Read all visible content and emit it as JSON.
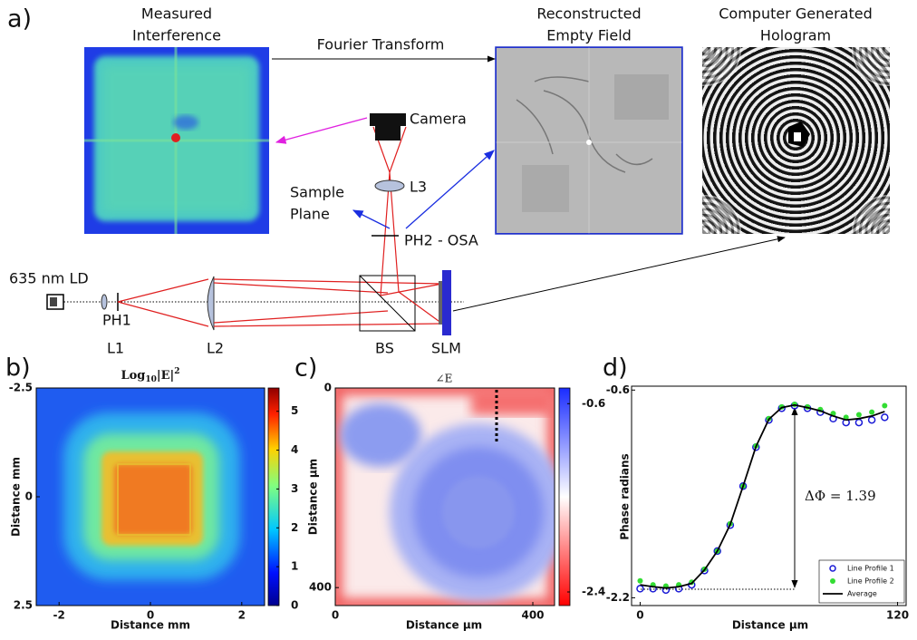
{
  "panel_a": {
    "label": "a)",
    "measured": {
      "title": [
        "Measured",
        "Interference"
      ]
    },
    "reconstructed": {
      "title": [
        "Reconstructed",
        "Empty Field"
      ]
    },
    "hologram": {
      "title": [
        "Computer Generated",
        "Hologram"
      ]
    },
    "transform_label": "Fourier Transform",
    "setup": {
      "source": "635 nm LD",
      "pinhole": "PH1",
      "lens1": "L1",
      "lens2": "L2",
      "beam_splitter": "BS",
      "modulator": "SLM",
      "camera": "Camera",
      "lens3": "L3",
      "sample_plane": [
        "Sample",
        "Plane"
      ],
      "osa": "PH2 - OSA"
    }
  },
  "panel_b": {
    "label": "b)",
    "title": {
      "base": "Log",
      "sub": "10",
      "main": "|E|",
      "sup": "2"
    },
    "xlabel": "Distance mm",
    "ylabel": "Distance mm",
    "xlim": [
      -2.5,
      2.5
    ],
    "xticks": [
      -2,
      0,
      2
    ],
    "ylim": [
      -2.5,
      2.5
    ],
    "yticks": [
      -2.5,
      0,
      2.5
    ],
    "colorbar": {
      "lim": [
        0,
        5.6
      ],
      "ticks": [
        0,
        1,
        2,
        3,
        4,
        5
      ]
    }
  },
  "panel_c": {
    "label": "c)",
    "title": "∠E",
    "xlabel": "Distance μm",
    "ylabel": "Distance μm",
    "xlim": [
      0,
      444
    ],
    "xticks": [
      0,
      400
    ],
    "ylim": [
      0,
      436
    ],
    "yticks": [
      0,
      400
    ],
    "colorbar": {
      "lim": [
        -2.53,
        -0.45
      ],
      "ticks": [
        -0.6,
        -2.4
      ]
    }
  },
  "chart_data": {
    "type": "scatter",
    "label": "d)",
    "xlabel": "Distance μm",
    "ylabel": "Phase radians",
    "xlim": [
      -4,
      124
    ],
    "xticks": [
      0,
      120
    ],
    "ylim": [
      -2.26,
      -0.57
    ],
    "yticks": [
      -2.2,
      -0.6
    ],
    "annotation": "ΔΦ = 1.39",
    "legend": "lower right",
    "x": [
      0,
      6,
      12,
      18,
      24,
      30,
      36,
      42,
      48,
      54,
      60,
      66,
      72,
      78,
      84,
      90,
      96,
      102,
      108,
      114
    ],
    "series": [
      {
        "name": "Line Profile 1",
        "color": "#1a1ad6",
        "marker": "open-circle",
        "values": [
          -2.13,
          -2.13,
          -2.14,
          -2.13,
          -2.1,
          -1.99,
          -1.84,
          -1.64,
          -1.34,
          -1.04,
          -0.83,
          -0.74,
          -0.72,
          -0.74,
          -0.77,
          -0.82,
          -0.85,
          -0.85,
          -0.83,
          -0.81
        ]
      },
      {
        "name": "Line Profile 2",
        "color": "#33dd33",
        "marker": "dot",
        "values": [
          -2.07,
          -2.1,
          -2.11,
          -2.1,
          -2.08,
          -1.98,
          -1.84,
          -1.63,
          -1.34,
          -1.03,
          -0.82,
          -0.73,
          -0.71,
          -0.73,
          -0.75,
          -0.78,
          -0.81,
          -0.79,
          -0.77,
          -0.72
        ]
      },
      {
        "name": "Average",
        "color": "#000000",
        "marker": "line",
        "values": [
          -2.1,
          -2.115,
          -2.125,
          -2.115,
          -2.09,
          -1.985,
          -1.84,
          -1.635,
          -1.34,
          -1.035,
          -0.825,
          -0.735,
          -0.715,
          -0.735,
          -0.76,
          -0.8,
          -0.83,
          -0.82,
          -0.8,
          -0.765
        ]
      }
    ]
  }
}
